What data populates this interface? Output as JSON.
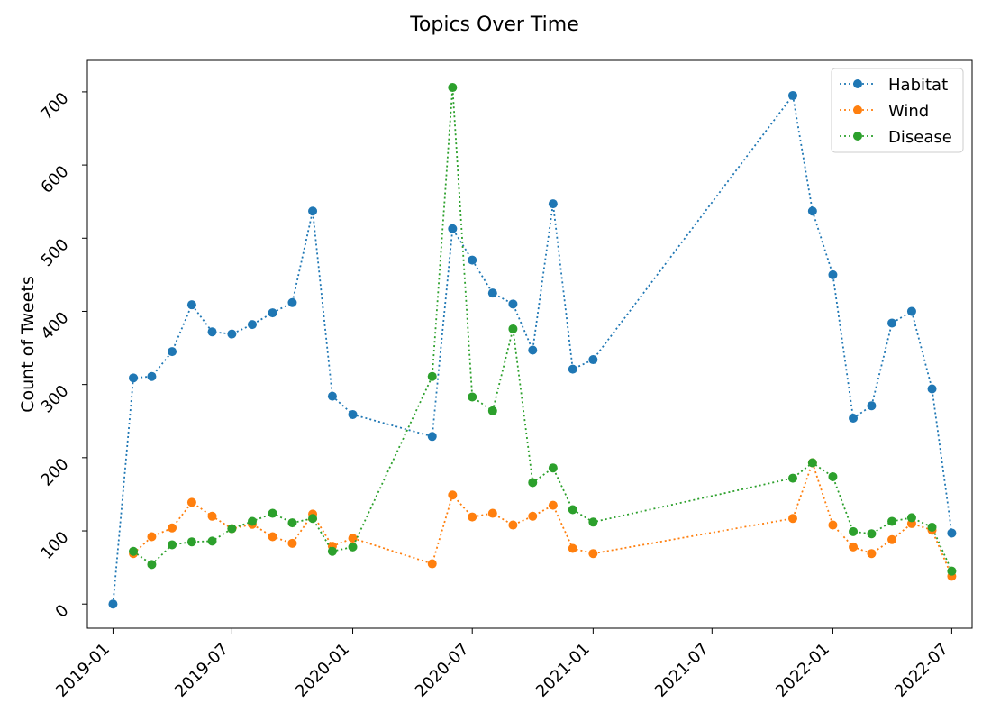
{
  "chart_data": {
    "type": "line",
    "title": "Topics Over Time",
    "xlabel": "",
    "ylabel": "Count of Tweets",
    "x_ticks": [
      "2019-01",
      "2019-07",
      "2020-01",
      "2020-07",
      "2021-01",
      "2021-07",
      "2022-01",
      "2022-07"
    ],
    "y_ticks": [
      "0",
      "100",
      "200",
      "300",
      "400",
      "500",
      "600",
      "700"
    ],
    "xlim": [
      "2018-11-23",
      "2022-08-01"
    ],
    "ylim": [
      -33,
      743
    ],
    "grid": false,
    "legend_position": "top-right",
    "line_style": "dotted",
    "marker": "circle",
    "series": [
      {
        "name": "Habitat",
        "color": "#1f77b4",
        "points": [
          [
            "2019-01-01",
            0
          ],
          [
            "2019-02-01",
            309
          ],
          [
            "2019-03-01",
            311
          ],
          [
            "2019-04-01",
            345
          ],
          [
            "2019-05-01",
            409
          ],
          [
            "2019-06-01",
            372
          ],
          [
            "2019-07-01",
            369
          ],
          [
            "2019-08-01",
            382
          ],
          [
            "2019-09-01",
            398
          ],
          [
            "2019-10-01",
            412
          ],
          [
            "2019-11-01",
            537
          ],
          [
            "2019-12-01",
            284
          ],
          [
            "2020-01-01",
            259
          ],
          [
            "2020-05-01",
            229
          ],
          [
            "2020-06-01",
            513
          ],
          [
            "2020-07-01",
            470
          ],
          [
            "2020-08-01",
            425
          ],
          [
            "2020-09-01",
            410
          ],
          [
            "2020-10-01",
            347
          ],
          [
            "2020-11-01",
            547
          ],
          [
            "2020-12-01",
            321
          ],
          [
            "2021-01-01",
            334
          ],
          [
            "2021-11-01",
            695
          ],
          [
            "2021-12-01",
            537
          ],
          [
            "2022-01-01",
            450
          ],
          [
            "2022-02-01",
            254
          ],
          [
            "2022-03-01",
            271
          ],
          [
            "2022-04-01",
            384
          ],
          [
            "2022-05-01",
            400
          ],
          [
            "2022-06-01",
            294
          ],
          [
            "2022-07-01",
            97
          ]
        ]
      },
      {
        "name": "Wind",
        "color": "#ff7f0e",
        "points": [
          [
            "2019-02-01",
            69
          ],
          [
            "2019-03-01",
            92
          ],
          [
            "2019-04-01",
            104
          ],
          [
            "2019-05-01",
            139
          ],
          [
            "2019-06-01",
            120
          ],
          [
            "2019-07-01",
            103
          ],
          [
            "2019-08-01",
            109
          ],
          [
            "2019-09-01",
            92
          ],
          [
            "2019-10-01",
            83
          ],
          [
            "2019-11-01",
            123
          ],
          [
            "2019-12-01",
            79
          ],
          [
            "2020-01-01",
            90
          ],
          [
            "2020-05-01",
            55
          ],
          [
            "2020-06-01",
            149
          ],
          [
            "2020-07-01",
            119
          ],
          [
            "2020-08-01",
            124
          ],
          [
            "2020-09-01",
            108
          ],
          [
            "2020-10-01",
            120
          ],
          [
            "2020-11-01",
            135
          ],
          [
            "2020-12-01",
            76
          ],
          [
            "2021-01-01",
            69
          ],
          [
            "2021-11-01",
            117
          ],
          [
            "2021-12-01",
            193
          ],
          [
            "2022-01-01",
            108
          ],
          [
            "2022-02-01",
            78
          ],
          [
            "2022-03-01",
            69
          ],
          [
            "2022-04-01",
            88
          ],
          [
            "2022-05-01",
            110
          ],
          [
            "2022-06-01",
            101
          ],
          [
            "2022-07-01",
            38
          ]
        ]
      },
      {
        "name": "Disease",
        "color": "#2ca02c",
        "points": [
          [
            "2019-02-01",
            72
          ],
          [
            "2019-03-01",
            54
          ],
          [
            "2019-04-01",
            81
          ],
          [
            "2019-05-01",
            85
          ],
          [
            "2019-06-01",
            86
          ],
          [
            "2019-07-01",
            103
          ],
          [
            "2019-08-01",
            113
          ],
          [
            "2019-09-01",
            124
          ],
          [
            "2019-10-01",
            111
          ],
          [
            "2019-11-01",
            117
          ],
          [
            "2019-12-01",
            72
          ],
          [
            "2020-01-01",
            78
          ],
          [
            "2020-05-01",
            311
          ],
          [
            "2020-06-01",
            706
          ],
          [
            "2020-07-01",
            283
          ],
          [
            "2020-08-01",
            264
          ],
          [
            "2020-09-01",
            376
          ],
          [
            "2020-10-01",
            166
          ],
          [
            "2020-11-01",
            186
          ],
          [
            "2020-12-01",
            129
          ],
          [
            "2021-01-01",
            112
          ],
          [
            "2021-11-01",
            172
          ],
          [
            "2021-12-01",
            193
          ],
          [
            "2022-01-01",
            174
          ],
          [
            "2022-02-01",
            99
          ],
          [
            "2022-03-01",
            96
          ],
          [
            "2022-04-01",
            113
          ],
          [
            "2022-05-01",
            118
          ],
          [
            "2022-06-01",
            105
          ],
          [
            "2022-07-01",
            45
          ]
        ]
      }
    ]
  }
}
